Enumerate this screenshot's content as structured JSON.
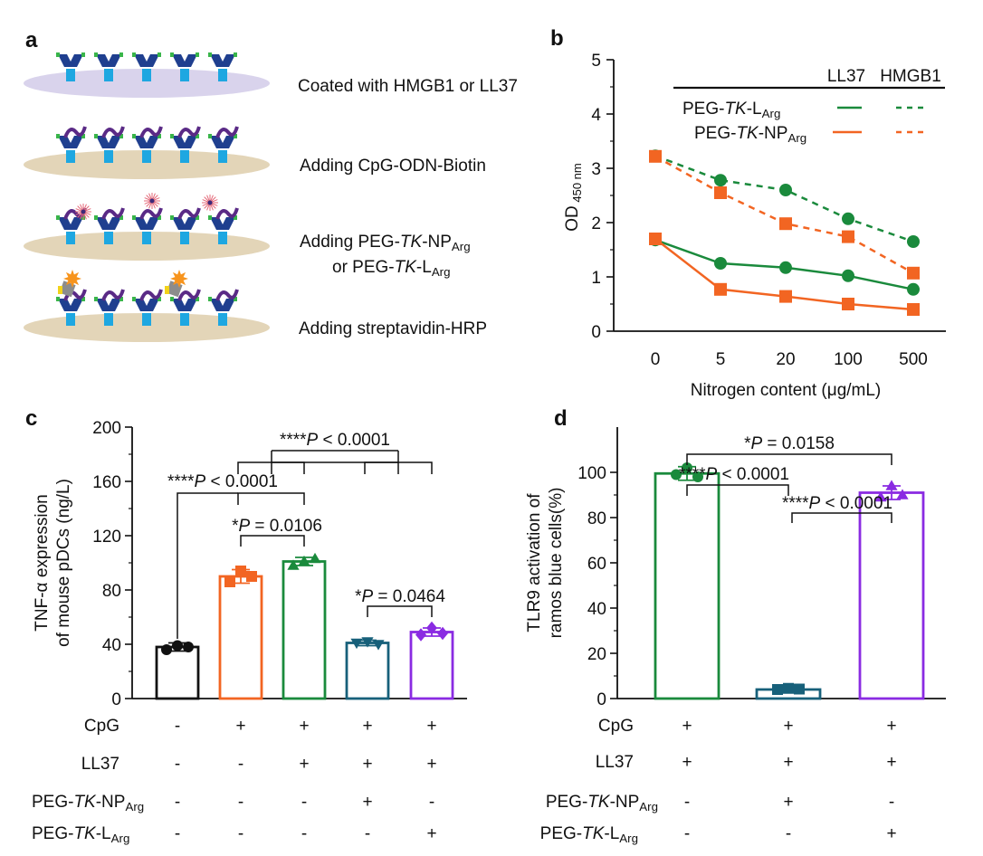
{
  "panel_a": {
    "letter": "a",
    "steps": [
      {
        "parts": [
          {
            "t": "Coated with HMGB1 or LL37"
          }
        ]
      },
      {
        "parts": [
          {
            "t": "Adding CpG-ODN-Biotin"
          }
        ]
      },
      {
        "parts": [
          {
            "t": "Adding PEG-"
          },
          {
            "t": "TK",
            "i": true
          },
          {
            "t": "-NP"
          },
          {
            "t": "Arg",
            "sub": true
          }
        ]
      },
      {
        "parts": [
          {
            "t": "or PEG-"
          },
          {
            "t": "TK",
            "i": true
          },
          {
            "t": "-L"
          },
          {
            "t": "Arg",
            "sub": true
          }
        ]
      },
      {
        "parts": [
          {
            "t": "Adding streptavidin-HRP"
          }
        ]
      }
    ],
    "colors": {
      "plate_top": "#d9d3ec",
      "plate": "#e3d5b8",
      "antibody": "#1f3f8f",
      "antibody_light": "#1ea7e1",
      "tip": "#39b54a",
      "dna": "#5a2a86",
      "hrp": "#f7941d",
      "strep": "#8c8c8c",
      "np": "#e46a7a"
    }
  },
  "chart_data": [
    {
      "panel": "b",
      "type": "line",
      "ylabel_main": "OD",
      "ylabel_sub": "450 nm",
      "xlabel": "Nitrogen content  (μg/mL)",
      "categories": [
        "0",
        "5",
        "20",
        "100",
        "500"
      ],
      "ylim": [
        0,
        5
      ],
      "yticks": [
        "0",
        "1",
        "2",
        "3",
        "4",
        "5"
      ],
      "legend_headers": [
        "LL37",
        "HMGB1"
      ],
      "legend_rows": [
        {
          "prefix": "PEG-",
          "ital": "TK",
          "mid": "-L",
          "sub": "Arg",
          "color": "#1a8a3c"
        },
        {
          "prefix": "PEG-",
          "ital": "TK",
          "mid": "-NP",
          "sub": "Arg",
          "color": "#f26522"
        }
      ],
      "series": [
        {
          "name": "PEG-TK-L Arg / HMGB1",
          "color": "#1a8a3c",
          "dash": true,
          "marker": "circle",
          "values": [
            3.23,
            2.78,
            2.6,
            2.07,
            1.65
          ],
          "err": [
            0.06,
            0.06,
            0.07,
            0.05,
            0.04
          ]
        },
        {
          "name": "PEG-TK-NP Arg / HMGB1",
          "color": "#f26522",
          "dash": true,
          "marker": "square",
          "values": [
            3.22,
            2.55,
            1.98,
            1.74,
            1.07
          ],
          "err": [
            0.05,
            0.06,
            0.06,
            0.05,
            0.05
          ]
        },
        {
          "name": "PEG-TK-L Arg / LL37",
          "color": "#1a8a3c",
          "dash": false,
          "marker": "circle",
          "values": [
            1.68,
            1.25,
            1.17,
            1.02,
            0.77
          ],
          "err": [
            0.05,
            0.04,
            0.04,
            0.06,
            0.04
          ]
        },
        {
          "name": "PEG-TK-NP Arg / LL37",
          "color": "#f26522",
          "dash": false,
          "marker": "square",
          "values": [
            1.7,
            0.77,
            0.64,
            0.5,
            0.4
          ],
          "err": [
            0.05,
            0.04,
            0.04,
            0.04,
            0.03
          ]
        }
      ]
    },
    {
      "panel": "c",
      "type": "bar",
      "ylabel": [
        "TNF-α expression",
        "of mouse pDCs (ng/L)"
      ],
      "ylim": [
        0,
        200
      ],
      "yticks": [
        "0",
        "40",
        "80",
        "120",
        "160",
        "200"
      ],
      "bars": [
        {
          "value": 38,
          "err": 3,
          "color": "#111111",
          "marker": "circle",
          "points": [
            36,
            39,
            38
          ]
        },
        {
          "value": 90,
          "err": 5,
          "color": "#f26522",
          "marker": "square",
          "points": [
            86,
            94,
            90
          ]
        },
        {
          "value": 101,
          "err": 3,
          "color": "#1a8a3c",
          "marker": "triangle",
          "points": [
            98,
            101,
            103
          ]
        },
        {
          "value": 41,
          "err": 2,
          "color": "#17607a",
          "marker": "invtriangle",
          "points": [
            41,
            42,
            40
          ]
        },
        {
          "value": 49,
          "err": 3,
          "color": "#8a2be2",
          "marker": "diamond",
          "points": [
            47,
            52,
            48
          ]
        }
      ],
      "significance": [
        {
          "stars": "****",
          "p": "P",
          "rest": " < 0.0001"
        },
        {
          "stars": "****",
          "p": "P",
          "rest": " < 0.0001"
        },
        {
          "stars": "*",
          "p": "P",
          "rest": " = 0.0106"
        },
        {
          "stars": "*",
          "p": "P",
          "rest": " = 0.0464"
        }
      ],
      "table": {
        "rows": [
          {
            "label": "CpG",
            "signs": [
              "-",
              "+",
              "+",
              "+",
              "+"
            ]
          },
          {
            "label": "LL37",
            "signs": [
              "-",
              "-",
              "+",
              "+",
              "+"
            ]
          },
          {
            "label": "PEG-TK-NP Arg",
            "signs": [
              "-",
              "-",
              "-",
              "+",
              "-"
            ]
          },
          {
            "label": "PEG-TK-L Arg",
            "signs": [
              "-",
              "-",
              "-",
              "-",
              "+"
            ]
          }
        ]
      }
    },
    {
      "panel": "d",
      "type": "bar",
      "ylabel": [
        "TLR9 activation of",
        "ramos blue cells(%)"
      ],
      "ylim": [
        0,
        120
      ],
      "yticks": [
        "0",
        "20",
        "40",
        "60",
        "80",
        "100"
      ],
      "bars": [
        {
          "value": 99.5,
          "err": 3,
          "color": "#1a8a3c",
          "marker": "circle",
          "points": [
            99,
            102,
            98
          ]
        },
        {
          "value": 4,
          "err": 0.5,
          "color": "#17607a",
          "marker": "square",
          "points": [
            4,
            4.5,
            4.2
          ]
        },
        {
          "value": 91,
          "err": 3,
          "color": "#8a2be2",
          "marker": "triangle",
          "points": [
            89,
            94,
            90
          ]
        }
      ],
      "significance": [
        {
          "stars": "*",
          "p": "P",
          "rest": " = 0.0158"
        },
        {
          "stars": "****",
          "p": "P",
          "rest": " < 0.0001"
        },
        {
          "stars": "****",
          "p": "P",
          "rest": " < 0.0001"
        }
      ],
      "table": {
        "rows": [
          {
            "label": "CpG",
            "signs": [
              "+",
              "+",
              "+"
            ]
          },
          {
            "label": "LL37",
            "signs": [
              "+",
              "+",
              "+"
            ]
          },
          {
            "label": "PEG-TK-NP Arg",
            "signs": [
              "-",
              "+",
              "-"
            ]
          },
          {
            "label": "PEG-TK-L Arg",
            "signs": [
              "-",
              "-",
              "+"
            ]
          }
        ]
      }
    }
  ],
  "panel_letters": {
    "b": "b",
    "c": "c",
    "d": "d"
  }
}
